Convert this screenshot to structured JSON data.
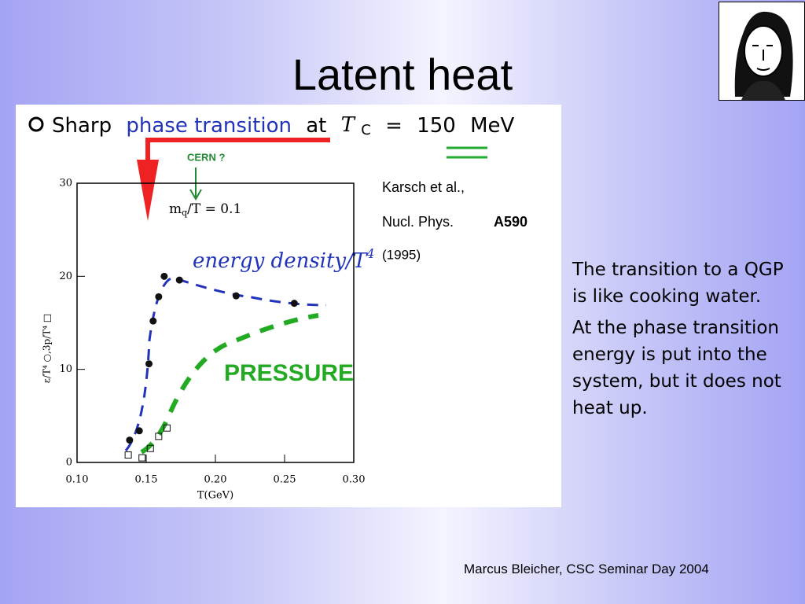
{
  "slide": {
    "title": "Latent heat",
    "figure": {
      "header": {
        "prefix": "Sharp",
        "highlight": "phase transition",
        "middle": "at",
        "symbol": "T",
        "subscript": "C",
        "equals": "=",
        "value_text": "150",
        "unit": "MeV"
      },
      "annotations": {
        "cern": "CERN ?",
        "mass": "m",
        "mass_sub": "q",
        "mass_rest": "/T = 0.1",
        "ref1": "Karsch et al.,",
        "ref2": "Nucl. Phys.",
        "ref3": "A590",
        "ref4": "(1995)",
        "energy": "energy density/T",
        "energy_sup": "4",
        "pressure": "PRESSURE"
      },
      "y_label": "ε/T⁴ ○,3p/T⁴ □",
      "x_label": "T(GeV)",
      "xlim": [
        0.1,
        0.3
      ],
      "ylim": [
        0,
        30
      ],
      "xticks": [
        {
          "value": 0.1,
          "label": "0.10"
        },
        0.15,
        {
          "value": 0.2,
          "label": "0.20"
        },
        0.25,
        {
          "value": 0.3,
          "label": "0.30"
        }
      ],
      "yticks": [
        0,
        10,
        20,
        30
      ],
      "series": [
        {
          "name": "ε/T⁴",
          "marker": "filled-circle",
          "color": "#111111",
          "x": [
            0.138,
            0.145,
            0.152,
            0.155,
            0.159,
            0.163,
            0.174,
            0.215,
            0.257
          ],
          "values": [
            2.4,
            3.4,
            10.6,
            15.2,
            17.8,
            20.0,
            19.6,
            17.9,
            17.1
          ]
        },
        {
          "name": "3p/T⁴",
          "marker": "open-square",
          "color": "#111111",
          "x": [
            0.137,
            0.147,
            0.153,
            0.159,
            0.165
          ],
          "values": [
            0.8,
            0.5,
            1.5,
            2.8,
            3.7
          ]
        }
      ]
    },
    "text": [
      "The transition to a QGP is like cooking water.",
      "At the phase transition energy is put into the system, but it does not heat up."
    ],
    "footer": "Marcus Bleicher, CSC Seminar Day 2004"
  }
}
